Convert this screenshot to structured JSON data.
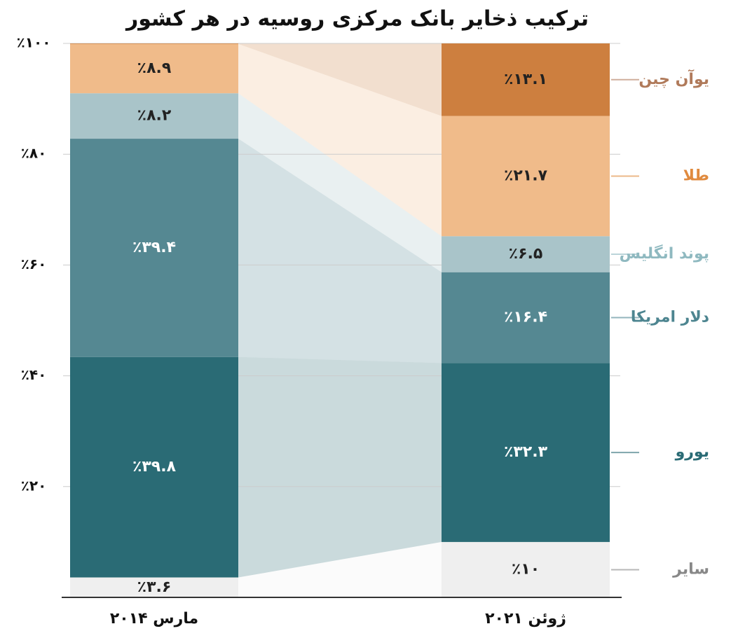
{
  "chart_data": {
    "type": "stacked_bar",
    "title": "ترکیب ذخایر بانک مرکزی روسیه در هر کشور",
    "categories": [
      "مارس ۲۰۱۴",
      "ژوئن ۲۰۲۱"
    ],
    "series": [
      {
        "name": "سایر",
        "color": "#efefef",
        "label_color": "#888888",
        "values": [
          3.6,
          10
        ],
        "value_labels": [
          "٪۳.۶",
          "٪۱۰"
        ]
      },
      {
        "name": "یورو",
        "color": "#2a6b75",
        "label_color": "#2a6b75",
        "values": [
          39.8,
          32.3
        ],
        "value_labels": [
          "٪۳۹.۸",
          "٪۳۲.۳"
        ]
      },
      {
        "name": "دلار امریکا",
        "color": "#558892",
        "label_color": "#4d8590",
        "values": [
          39.4,
          16.4
        ],
        "value_labels": [
          "٪۳۹.۴",
          "٪۱۶.۴"
        ]
      },
      {
        "name": "پوند انگلیس",
        "color": "#a9c4c9",
        "label_color": "#8fb9c0",
        "values": [
          8.2,
          6.5
        ],
        "value_labels": [
          "٪۸.۲",
          "٪۶.۵"
        ]
      },
      {
        "name": "طلا",
        "color": "#f0bb8a",
        "label_color": "#e08a3e",
        "values": [
          8.9,
          21.7
        ],
        "value_labels": [
          "٪۸.۹",
          "٪۲۱.۷"
        ]
      },
      {
        "name": "یوآن چین",
        "color": "#cd7f3f",
        "label_color": "#b07a5a",
        "values": [
          0.1,
          13.1
        ],
        "value_labels": [
          null,
          "٪۱۳.۱"
        ]
      }
    ],
    "ylim": [
      0,
      100
    ],
    "yticks": [
      {
        "value": 20,
        "label": "٪۲۰"
      },
      {
        "value": 40,
        "label": "٪۴۰"
      },
      {
        "value": 60,
        "label": "٪۶۰"
      },
      {
        "value": 80,
        "label": "٪۸۰"
      },
      {
        "value": 100,
        "label": "٪۱۰۰"
      }
    ],
    "grid": true
  }
}
